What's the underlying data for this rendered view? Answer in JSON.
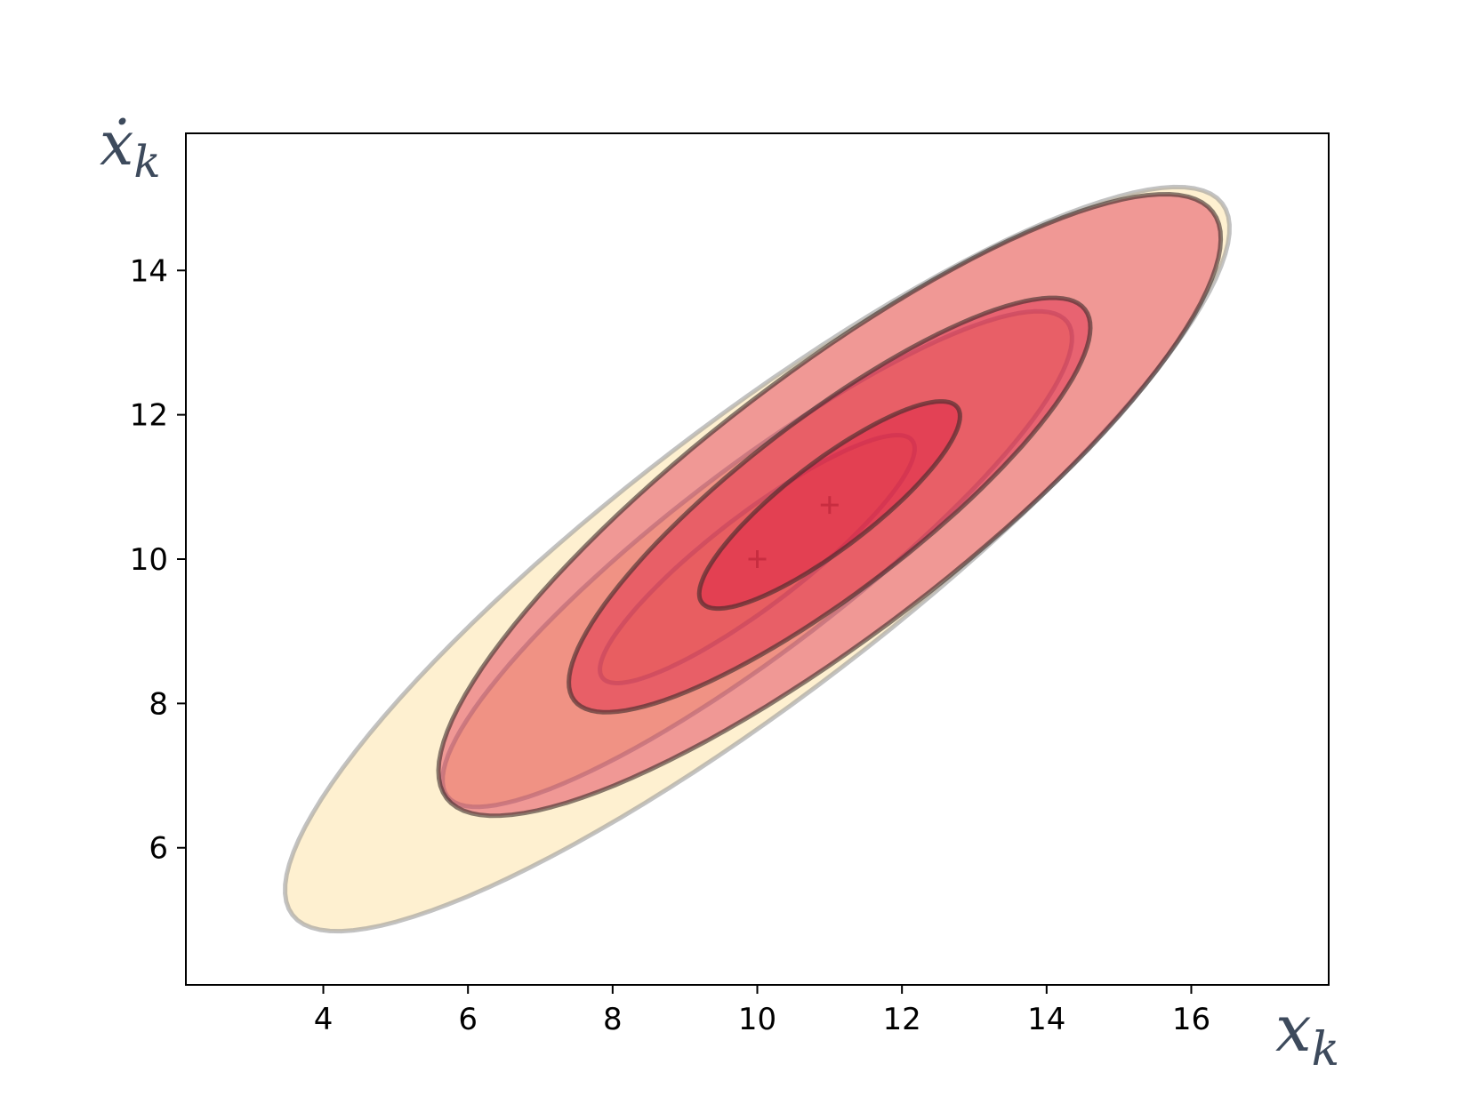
{
  "chart_data": {
    "type": "scatter",
    "title": "",
    "xlabel": "x",
    "xlabel_sub": "k",
    "ylabel": "ẋ",
    "ylabel_sub": "k",
    "xlim": [
      2.1,
      17.9
    ],
    "ylim": [
      4.1,
      15.9
    ],
    "xticks": [
      4,
      6,
      8,
      10,
      12,
      14,
      16
    ],
    "yticks": [
      6,
      8,
      10,
      12,
      14
    ],
    "grid": false,
    "series": [
      {
        "kind": "covariance-ellipses",
        "center": [
          10,
          10
        ],
        "marker": "+",
        "fill_color": "#fdd98a",
        "edge_color": "#9a9a9a",
        "ellipses": [
          {
            "sigma": 1,
            "width": 5.4,
            "height": 1.26,
            "angle_deg": 37.5
          },
          {
            "sigma": 2,
            "width": 10.8,
            "height": 2.5,
            "angle_deg": 37.5
          },
          {
            "sigma": 3,
            "width": 16.2,
            "height": 3.8,
            "angle_deg": 37.5
          }
        ]
      },
      {
        "kind": "covariance-ellipses",
        "center": [
          11,
          10.75
        ],
        "marker": "+",
        "fill_color": "#dc143c",
        "edge_color": "#3a2a2a",
        "ellipses": [
          {
            "sigma": 1,
            "width": 4.45,
            "height": 1.2,
            "angle_deg": 37.5
          },
          {
            "sigma": 2,
            "width": 8.9,
            "height": 2.4,
            "angle_deg": 37.5
          },
          {
            "sigma": 3,
            "width": 13.35,
            "height": 3.6,
            "angle_deg": 37.5
          }
        ]
      }
    ]
  }
}
